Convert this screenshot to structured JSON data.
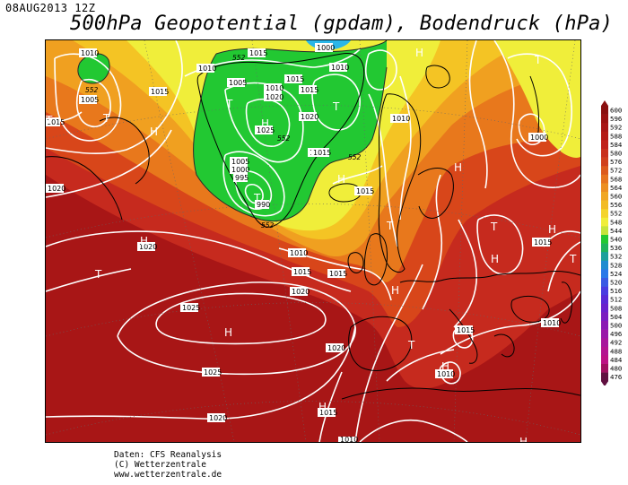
{
  "header": {
    "datestamp": "08AUG2013 12Z",
    "title": "500hPa Geopotential (gpdam), Bodendruck (hPa)"
  },
  "footer": {
    "line1": "Daten: CFS Reanalysis",
    "line2": "(C) Wetterzentrale",
    "line3": "www.wetterzentrale.de"
  },
  "colors": {
    "dark_red": "#a81616",
    "red": "#c62a1e",
    "orange_red": "#d8461a",
    "orange": "#e8781c",
    "light_orange": "#f0a020",
    "yellow_orange": "#f4c424",
    "yellow": "#f0ee3a",
    "light_green": "#b4e040",
    "green": "#22c832",
    "cyan": "#2ab6e8",
    "isobar": "#ffffff",
    "coast": "#000000"
  },
  "legend": {
    "ticks": [
      "600",
      "596",
      "592",
      "588",
      "584",
      "580",
      "576",
      "572",
      "568",
      "564",
      "560",
      "556",
      "552",
      "548",
      "544",
      "540",
      "536",
      "532",
      "528",
      "524",
      "520",
      "516",
      "512",
      "508",
      "504",
      "500",
      "496",
      "492",
      "488",
      "484",
      "480",
      "476"
    ],
    "colors": [
      "#8a1010",
      "#9a1212",
      "#a81616",
      "#b41a16",
      "#c0221a",
      "#c8301c",
      "#d0401c",
      "#dc5a1c",
      "#e6741e",
      "#ec8e20",
      "#f0a622",
      "#f2bc26",
      "#f4d42c",
      "#f0ee3a",
      "#c4e43c",
      "#22c832",
      "#1fb45c",
      "#1ca09c",
      "#1e8cd0",
      "#2a78e8",
      "#3a5ae4",
      "#4a3ce0",
      "#5a2ad6",
      "#6a22cc",
      "#7a1ec0",
      "#8a1ab4",
      "#9a18a8",
      "#a8169c",
      "#b41490",
      "#bc1284",
      "#a01060",
      "#601040"
    ]
  },
  "map": {
    "pressure_labels": [
      {
        "text": "1010",
        "kind": "isobar"
      },
      {
        "text": "1015",
        "kind": "isobar"
      },
      {
        "text": "1005",
        "kind": "isobar"
      },
      {
        "text": "1000",
        "kind": "isobar"
      },
      {
        "text": "1015",
        "kind": "isobar"
      },
      {
        "text": "1010",
        "kind": "isobar"
      },
      {
        "text": "1005",
        "kind": "isobar"
      },
      {
        "text": "1015",
        "kind": "isobar"
      },
      {
        "text": "1010",
        "kind": "isobar"
      },
      {
        "text": "1020",
        "kind": "isobar"
      },
      {
        "text": "1025",
        "kind": "isobar"
      },
      {
        "text": "1005",
        "kind": "isobar"
      },
      {
        "text": "1000",
        "kind": "isobar"
      },
      {
        "text": "995",
        "kind": "isobar"
      },
      {
        "text": "990",
        "kind": "isobar"
      },
      {
        "text": "1015",
        "kind": "isobar"
      },
      {
        "text": "1020",
        "kind": "isobar"
      },
      {
        "text": "1015",
        "kind": "isobar"
      },
      {
        "text": "1010",
        "kind": "isobar"
      },
      {
        "text": "1000",
        "kind": "isobar"
      },
      {
        "text": "1020",
        "kind": "isobar"
      },
      {
        "text": "1015",
        "kind": "isobar"
      },
      {
        "text": "1020",
        "kind": "isobar"
      },
      {
        "text": "1025",
        "kind": "isobar"
      },
      {
        "text": "1020",
        "kind": "isobar"
      },
      {
        "text": "1025",
        "kind": "isobar"
      },
      {
        "text": "1020",
        "kind": "isobar"
      },
      {
        "text": "1015",
        "kind": "isobar"
      },
      {
        "text": "1010",
        "kind": "isobar"
      },
      {
        "text": "1015",
        "kind": "isobar"
      },
      {
        "text": "1015",
        "kind": "isobar"
      },
      {
        "text": "1010",
        "kind": "isobar"
      },
      {
        "text": "1015",
        "kind": "isobar"
      },
      {
        "text": "1015",
        "kind": "isobar"
      },
      {
        "text": "1010",
        "kind": "isobar"
      },
      {
        "text": "1020",
        "kind": "isobar"
      },
      {
        "text": "1015",
        "kind": "isobar"
      },
      {
        "text": "1010",
        "kind": "isobar"
      },
      {
        "text": "1015",
        "kind": "isobar"
      },
      {
        "text": "1010",
        "kind": "isobar"
      }
    ],
    "height_labels": [
      "552",
      "552",
      "552",
      "552",
      "552"
    ],
    "centers": [
      {
        "letter": "T"
      },
      {
        "letter": "T"
      },
      {
        "letter": "H"
      },
      {
        "letter": "H"
      },
      {
        "letter": "T"
      },
      {
        "letter": "T"
      },
      {
        "letter": "H"
      },
      {
        "letter": "H"
      },
      {
        "letter": "T"
      },
      {
        "letter": "T"
      },
      {
        "letter": "H"
      },
      {
        "letter": "T"
      },
      {
        "letter": "H"
      },
      {
        "letter": "T"
      },
      {
        "letter": "H"
      },
      {
        "letter": "T"
      },
      {
        "letter": "H"
      },
      {
        "letter": "T"
      },
      {
        "letter": "H"
      },
      {
        "letter": "H"
      },
      {
        "letter": "H"
      },
      {
        "letter": "H"
      },
      {
        "letter": "T"
      },
      {
        "letter": "H"
      }
    ]
  }
}
